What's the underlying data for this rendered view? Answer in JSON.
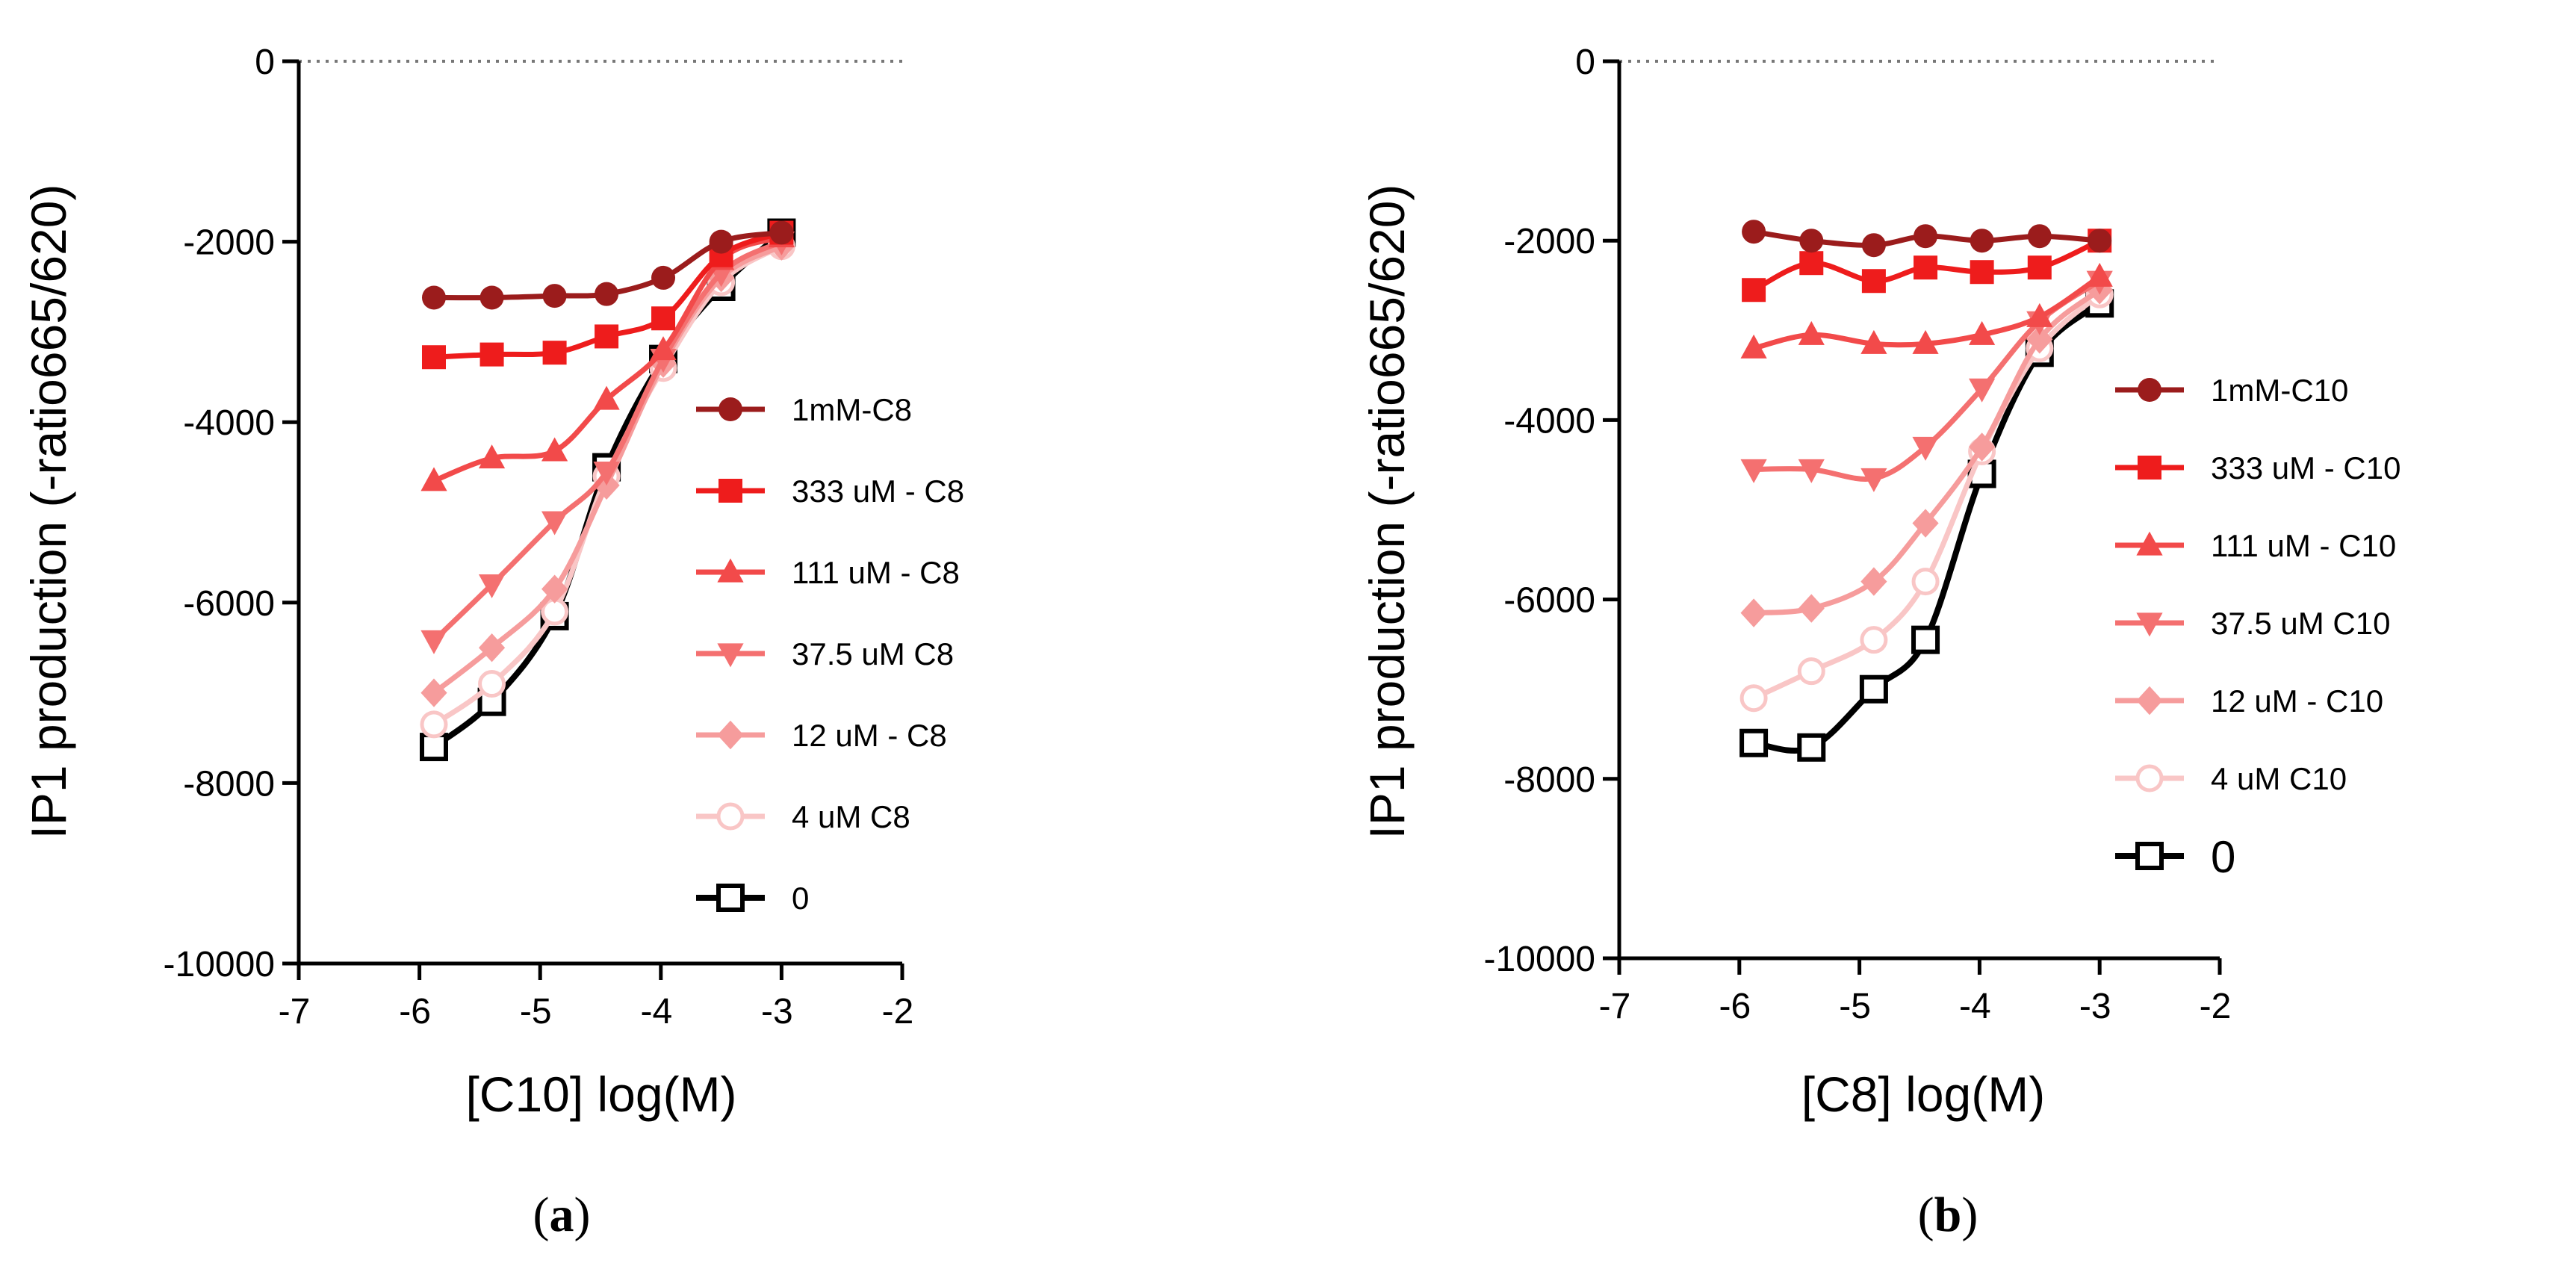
{
  "chart_data": [
    {
      "type": "line",
      "panel_label": "a",
      "xlabel": "[C10] log(M)",
      "ylabel": "IP1 production (-ratio665/620)",
      "xlim": [
        -7,
        -2
      ],
      "ylim": [
        -10000,
        0
      ],
      "xticks": [
        "-7",
        "-6",
        "-5",
        "-4",
        "-3",
        "-2"
      ],
      "yticks": [
        "0",
        "-2000",
        "-4000",
        "-6000",
        "-8000",
        "-10000"
      ],
      "reference_line": 0,
      "x": [
        -5.88,
        -5.4,
        -4.88,
        -4.45,
        -3.98,
        -3.5,
        -3.0
      ],
      "series": [
        {
          "name": "1mM-C8",
          "marker": "circle",
          "color": "#9b1c1c",
          "values": [
            -2620,
            -2620,
            -2600,
            -2580,
            -2400,
            -2000,
            -1900
          ]
        },
        {
          "name": "333 uM - C8",
          "marker": "square",
          "color": "#ee1c1c",
          "values": [
            -3280,
            -3250,
            -3230,
            -3050,
            -2850,
            -2150,
            -1900
          ]
        },
        {
          "name": "111 uM - C8",
          "marker": "triangle-up",
          "color": "#f24a4a",
          "values": [
            -4650,
            -4400,
            -4320,
            -3750,
            -3200,
            -2200,
            -1950
          ]
        },
        {
          "name": "37.5 uM C8",
          "marker": "triangle-down",
          "color": "#f47070",
          "values": [
            -6420,
            -5800,
            -5100,
            -4550,
            -3300,
            -2350,
            -2000
          ]
        },
        {
          "name": "12 uM - C8",
          "marker": "diamond",
          "color": "#f69c9c",
          "values": [
            -7000,
            -6500,
            -5850,
            -4700,
            -3350,
            -2400,
            -2050
          ]
        },
        {
          "name": "4 uM C8",
          "marker": "circle-open",
          "color": "#f9c6c6",
          "values": [
            -7350,
            -6900,
            -6100,
            -4600,
            -3400,
            -2450,
            -2050
          ]
        },
        {
          "name": "0",
          "marker": "square-open",
          "color": "#000000",
          "values": [
            -7600,
            -7100,
            -6150,
            -4500,
            -3300,
            -2500,
            -1900
          ]
        }
      ]
    },
    {
      "type": "line",
      "panel_label": "b",
      "xlabel": "[C8] log(M)",
      "ylabel": "IP1 production (-ratio665/620)",
      "xlim": [
        -7,
        -2
      ],
      "ylim": [
        -10000,
        0
      ],
      "xticks": [
        "-7",
        "-6",
        "-5",
        "-4",
        "-3",
        "-2"
      ],
      "yticks": [
        "0",
        "-2000",
        "-4000",
        "-6000",
        "-8000",
        "-10000"
      ],
      "reference_line": 0,
      "x": [
        -5.88,
        -5.4,
        -4.88,
        -4.45,
        -3.98,
        -3.5,
        -3.0
      ],
      "series": [
        {
          "name": "1mM-C10",
          "marker": "circle",
          "color": "#9b1c1c",
          "values": [
            -1900,
            -2000,
            -2050,
            -1950,
            -2000,
            -1950,
            -2000
          ]
        },
        {
          "name": "333 uM - C10",
          "marker": "square",
          "color": "#ee1c1c",
          "values": [
            -2550,
            -2250,
            -2450,
            -2300,
            -2350,
            -2300,
            -2000
          ]
        },
        {
          "name": "111 uM - C10",
          "marker": "triangle-up",
          "color": "#f24a4a",
          "values": [
            -3200,
            -3050,
            -3150,
            -3150,
            -3050,
            -2850,
            -2400
          ]
        },
        {
          "name": "37.5 uM C10",
          "marker": "triangle-down",
          "color": "#f47070",
          "values": [
            -4550,
            -4550,
            -4650,
            -4300,
            -3650,
            -2900,
            -2450
          ]
        },
        {
          "name": "12 uM - C10",
          "marker": "diamond",
          "color": "#f69c9c",
          "values": [
            -6150,
            -6100,
            -5800,
            -5150,
            -4300,
            -3100,
            -2550
          ]
        },
        {
          "name": "4 uM C10",
          "marker": "circle-open",
          "color": "#f9c6c6",
          "values": [
            -7100,
            -6800,
            -6450,
            -5800,
            -4350,
            -3200,
            -2600
          ]
        },
        {
          "name": "0",
          "marker": "square-open",
          "color": "#000000",
          "values": [
            -7600,
            -7650,
            -7000,
            -6450,
            -4600,
            -3250,
            -2700
          ]
        }
      ]
    }
  ]
}
